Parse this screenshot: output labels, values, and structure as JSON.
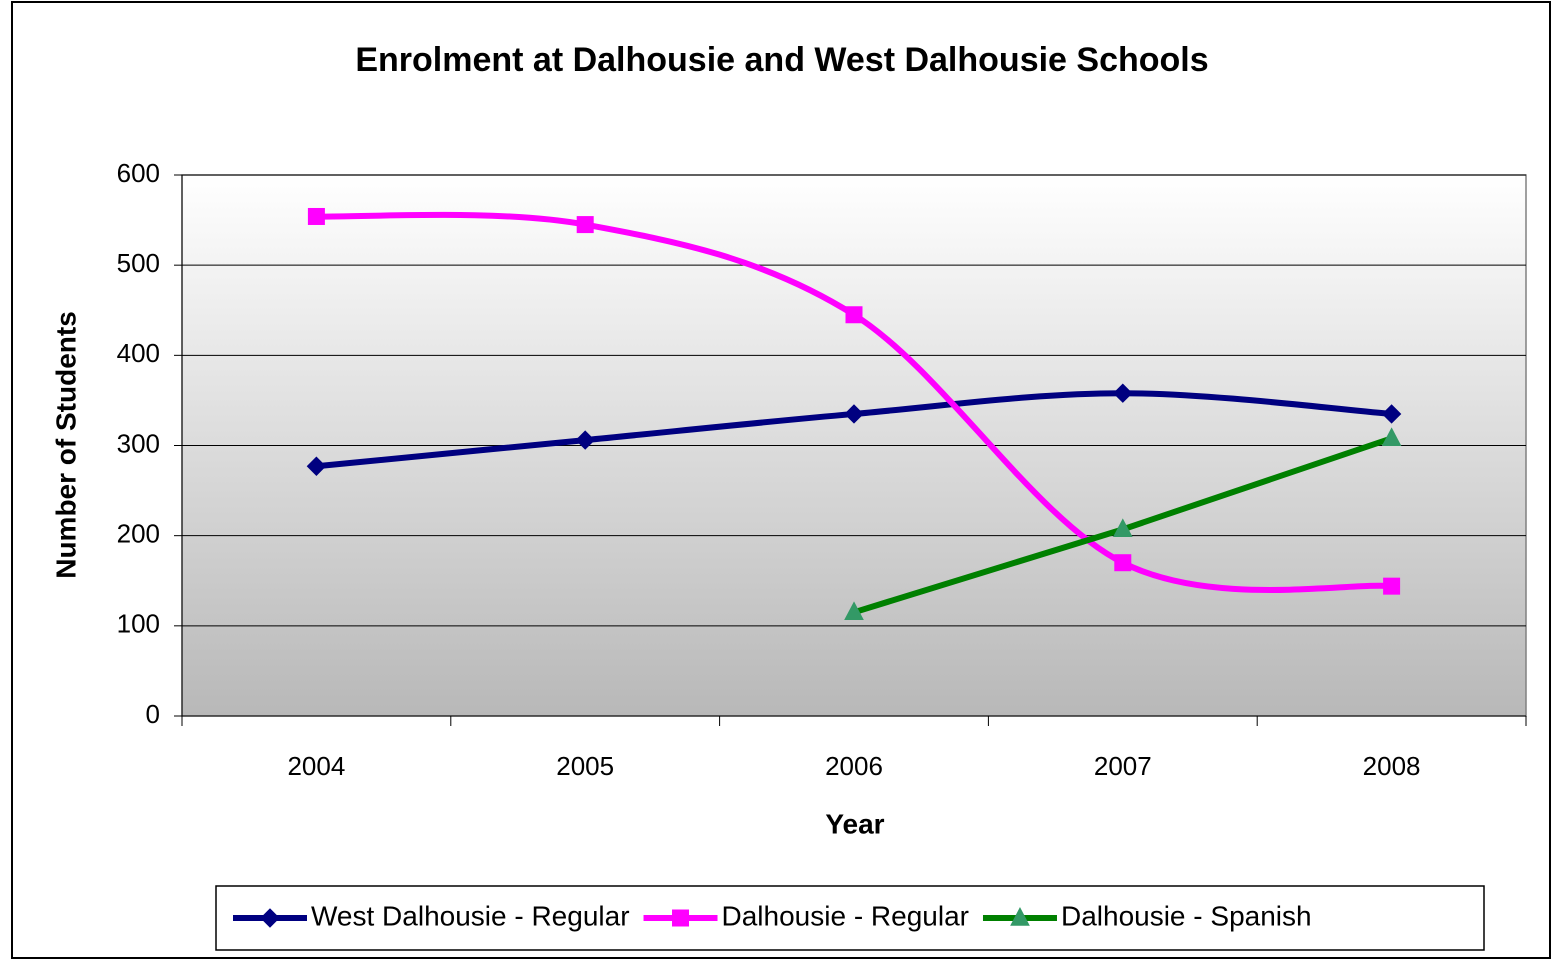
{
  "chart_data": {
    "type": "line",
    "title": "Enrolment at Dalhousie and West Dalhousie Schools",
    "x_label": "Year",
    "y_label": "Number of Students",
    "categories": [
      "2004",
      "2005",
      "2006",
      "2007",
      "2008"
    ],
    "series": [
      {
        "name": "West Dalhousie - Regular",
        "color": "#000080",
        "marker_color": "#000080",
        "marker": "diamond",
        "smooth": true,
        "values": [
          277,
          306,
          335,
          358,
          335
        ]
      },
      {
        "name": "Dalhousie - Regular",
        "color": "#ff00ff",
        "marker_color": "#ff00ff",
        "marker": "square",
        "smooth": true,
        "values": [
          554,
          545,
          445,
          170,
          144
        ]
      },
      {
        "name": "Dalhousie - Spanish",
        "color": "#008000",
        "marker_color": "#339966",
        "marker": "triangle",
        "smooth": false,
        "values": [
          null,
          null,
          115,
          207,
          308
        ]
      }
    ],
    "ylim": [
      0,
      600
    ],
    "yticks": [
      0,
      100,
      200,
      300,
      400,
      500,
      600
    ],
    "grid": true,
    "legend": "bottom"
  }
}
